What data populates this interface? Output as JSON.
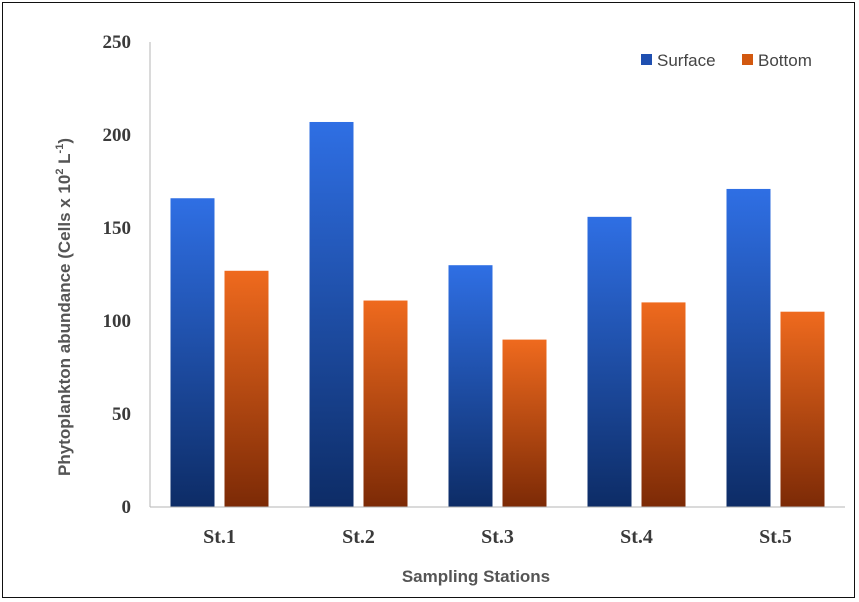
{
  "chart_data": {
    "type": "bar",
    "title": "",
    "categories": [
      "St.1",
      "St.2",
      "St.3",
      "St.4",
      "St.5"
    ],
    "series": [
      {
        "name": "Surface",
        "values": [
          166,
          207,
          130,
          156,
          171
        ],
        "color": "#1f4fb0"
      },
      {
        "name": "Bottom",
        "values": [
          127,
          111,
          90,
          110,
          105
        ],
        "color": "#d2580f"
      }
    ],
    "xlabel": "Sampling Stations",
    "ylabel_main": "Phytoplankton abundance (Cells x 10",
    "ylabel_sup": "2",
    "ylabel_unit": " L",
    "ylabel_sup2": "-1",
    "ylabel_close": ")",
    "ylim": [
      0,
      250
    ],
    "yticks": [
      0,
      50,
      100,
      150,
      200,
      250
    ],
    "grid": false,
    "legend_position": "top-right"
  }
}
